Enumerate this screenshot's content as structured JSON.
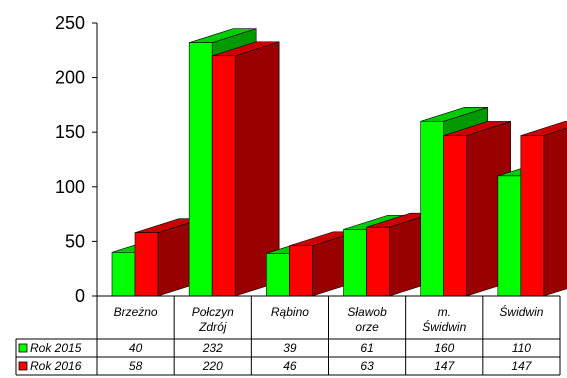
{
  "chart_data": {
    "type": "bar",
    "style": "3d-clustered-column-with-data-table",
    "categories": [
      [
        "Brzeżno"
      ],
      [
        "Połczyn",
        "Zdrój"
      ],
      [
        "Rąbino"
      ],
      [
        "Sławob",
        "orze"
      ],
      [
        "m.",
        "Świdwin"
      ],
      [
        "Świdwin"
      ]
    ],
    "series": [
      {
        "name": "Rok 2015",
        "values": [
          40,
          232,
          39,
          61,
          160,
          110
        ],
        "color": "#00ff00",
        "side_color": "#009900",
        "top_color": "#00cc00"
      },
      {
        "name": "Rok 2016",
        "values": [
          58,
          220,
          46,
          63,
          147,
          147
        ],
        "color": "#ff0000",
        "side_color": "#990000",
        "top_color": "#cc0000"
      }
    ],
    "ylim": [
      0,
      250
    ],
    "yticks": [
      0,
      50,
      100,
      150,
      200,
      250
    ],
    "grid": false,
    "legend": "data-table-left"
  }
}
